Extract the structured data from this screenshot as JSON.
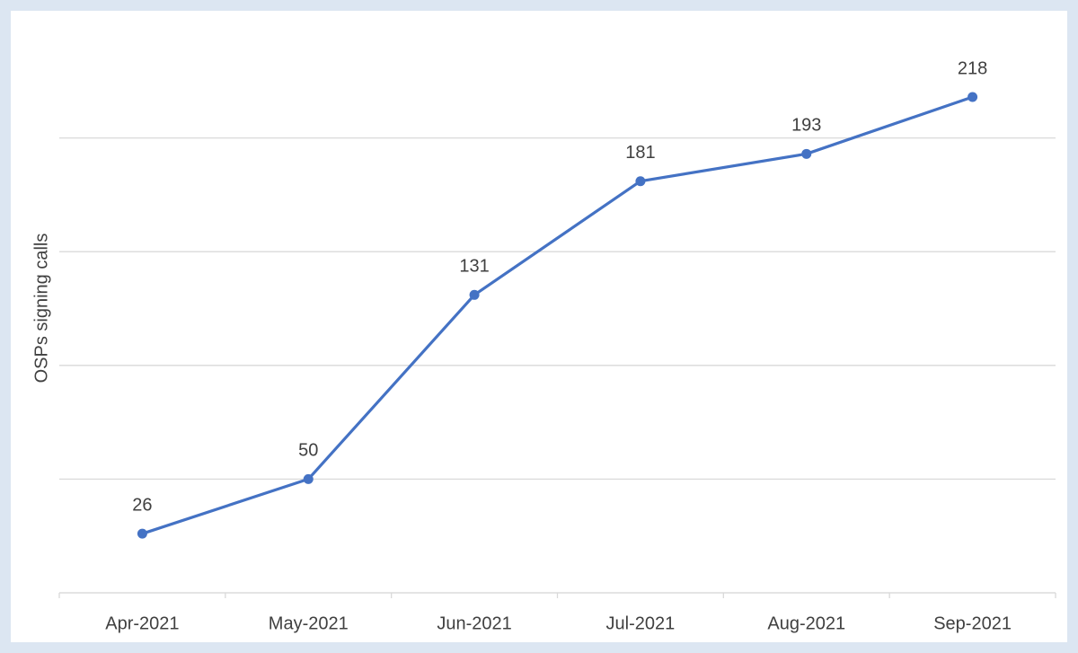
{
  "chart_data": {
    "type": "line",
    "y_label": "OSPs signing calls",
    "categories": [
      "Apr-2021",
      "May-2021",
      "Jun-2021",
      "Jul-2021",
      "Aug-2021",
      "Sep-2021"
    ],
    "series": [
      {
        "name": "OSPs signing calls",
        "color": "#4472c4",
        "values": [
          26,
          50,
          131,
          181,
          193,
          218
        ]
      }
    ],
    "ylim": [
      0,
      250
    ],
    "yticks": [
      0,
      50,
      100,
      150,
      200
    ],
    "grid": true
  }
}
